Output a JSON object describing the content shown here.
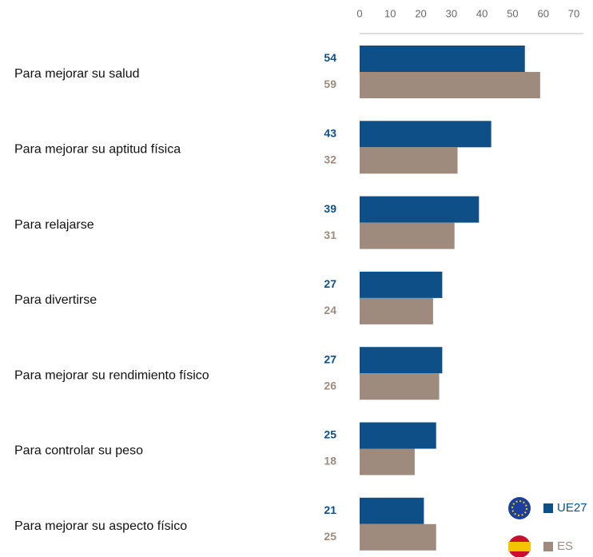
{
  "chart_data": {
    "type": "bar",
    "orientation": "horizontal",
    "categories": [
      "Para mejorar su salud",
      "Para mejorar su aptitud física",
      "Para relajarse",
      "Para divertirse",
      "Para mejorar su rendimiento físico",
      "Para controlar su peso",
      "Para mejorar su aspecto físico"
    ],
    "series": [
      {
        "name": "UE27",
        "color": "#0d4f86",
        "values": [
          54,
          43,
          39,
          27,
          27,
          25,
          21
        ]
      },
      {
        "name": "ES",
        "color": "#9e8b7e",
        "values": [
          59,
          32,
          31,
          24,
          26,
          18,
          25
        ]
      }
    ],
    "xlim": [
      0,
      70
    ],
    "xticks": [
      0,
      10,
      20,
      30,
      40,
      50,
      60,
      70
    ]
  }
}
